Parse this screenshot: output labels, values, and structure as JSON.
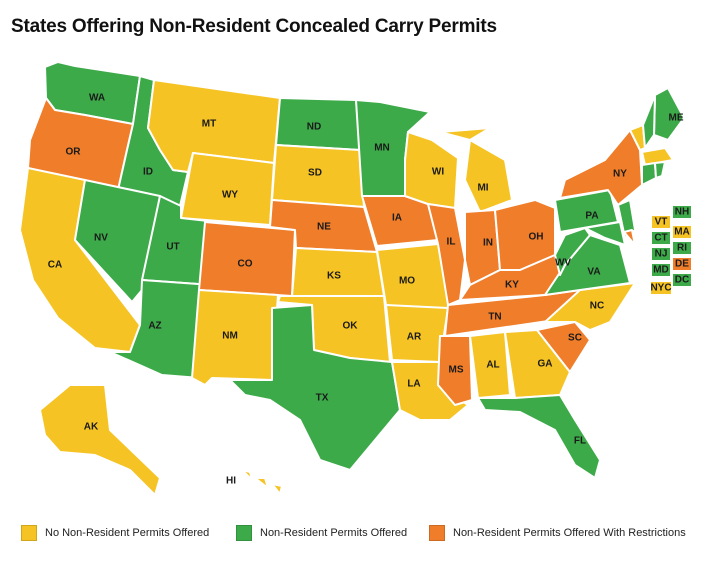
{
  "title": "States Offering Non-Resident Concealed Carry Permits",
  "colors": {
    "none": "#f5c323",
    "offered": "#3daa4a",
    "restricted": "#ef7d29"
  },
  "legend": [
    {
      "key": "none",
      "label": "No Non-Resident Permits Offered"
    },
    {
      "key": "offered",
      "label": "Non-Resident Permits Offered"
    },
    {
      "key": "restricted",
      "label": "Non-Resident Permits Offered With Restrictions"
    }
  ],
  "states": [
    {
      "abbr": "WA",
      "status": "offered"
    },
    {
      "abbr": "OR",
      "status": "restricted"
    },
    {
      "abbr": "CA",
      "status": "none"
    },
    {
      "abbr": "ID",
      "status": "offered"
    },
    {
      "abbr": "NV",
      "status": "offered"
    },
    {
      "abbr": "MT",
      "status": "none"
    },
    {
      "abbr": "WY",
      "status": "none"
    },
    {
      "abbr": "UT",
      "status": "offered"
    },
    {
      "abbr": "AZ",
      "status": "offered"
    },
    {
      "abbr": "CO",
      "status": "restricted"
    },
    {
      "abbr": "NM",
      "status": "none"
    },
    {
      "abbr": "ND",
      "status": "offered"
    },
    {
      "abbr": "SD",
      "status": "none"
    },
    {
      "abbr": "NE",
      "status": "restricted"
    },
    {
      "abbr": "KS",
      "status": "none"
    },
    {
      "abbr": "OK",
      "status": "none"
    },
    {
      "abbr": "TX",
      "status": "offered"
    },
    {
      "abbr": "MN",
      "status": "offered"
    },
    {
      "abbr": "IA",
      "status": "restricted"
    },
    {
      "abbr": "MO",
      "status": "none"
    },
    {
      "abbr": "AR",
      "status": "none"
    },
    {
      "abbr": "LA",
      "status": "none"
    },
    {
      "abbr": "WI",
      "status": "none"
    },
    {
      "abbr": "IL",
      "status": "restricted"
    },
    {
      "abbr": "MI",
      "status": "none"
    },
    {
      "abbr": "IN",
      "status": "restricted"
    },
    {
      "abbr": "OH",
      "status": "restricted"
    },
    {
      "abbr": "KY",
      "status": "restricted"
    },
    {
      "abbr": "TN",
      "status": "restricted"
    },
    {
      "abbr": "MS",
      "status": "restricted"
    },
    {
      "abbr": "AL",
      "status": "none"
    },
    {
      "abbr": "GA",
      "status": "none"
    },
    {
      "abbr": "FL",
      "status": "offered"
    },
    {
      "abbr": "SC",
      "status": "restricted"
    },
    {
      "abbr": "NC",
      "status": "none"
    },
    {
      "abbr": "VA",
      "status": "offered"
    },
    {
      "abbr": "WV",
      "status": "offered"
    },
    {
      "abbr": "PA",
      "status": "offered"
    },
    {
      "abbr": "NY",
      "status": "restricted"
    },
    {
      "abbr": "ME",
      "status": "offered"
    },
    {
      "abbr": "AK",
      "status": "none"
    },
    {
      "abbr": "HI",
      "status": "none"
    }
  ],
  "small_states": [
    {
      "abbr": "VT",
      "status": "none"
    },
    {
      "abbr": "NH",
      "status": "offered"
    },
    {
      "abbr": "MA",
      "status": "none"
    },
    {
      "abbr": "CT",
      "status": "offered"
    },
    {
      "abbr": "RI",
      "status": "offered"
    },
    {
      "abbr": "NJ",
      "status": "offered"
    },
    {
      "abbr": "DE",
      "status": "restricted"
    },
    {
      "abbr": "MD",
      "status": "offered"
    },
    {
      "abbr": "DC",
      "status": "offered"
    },
    {
      "abbr": "NYC",
      "status": "none"
    }
  ]
}
